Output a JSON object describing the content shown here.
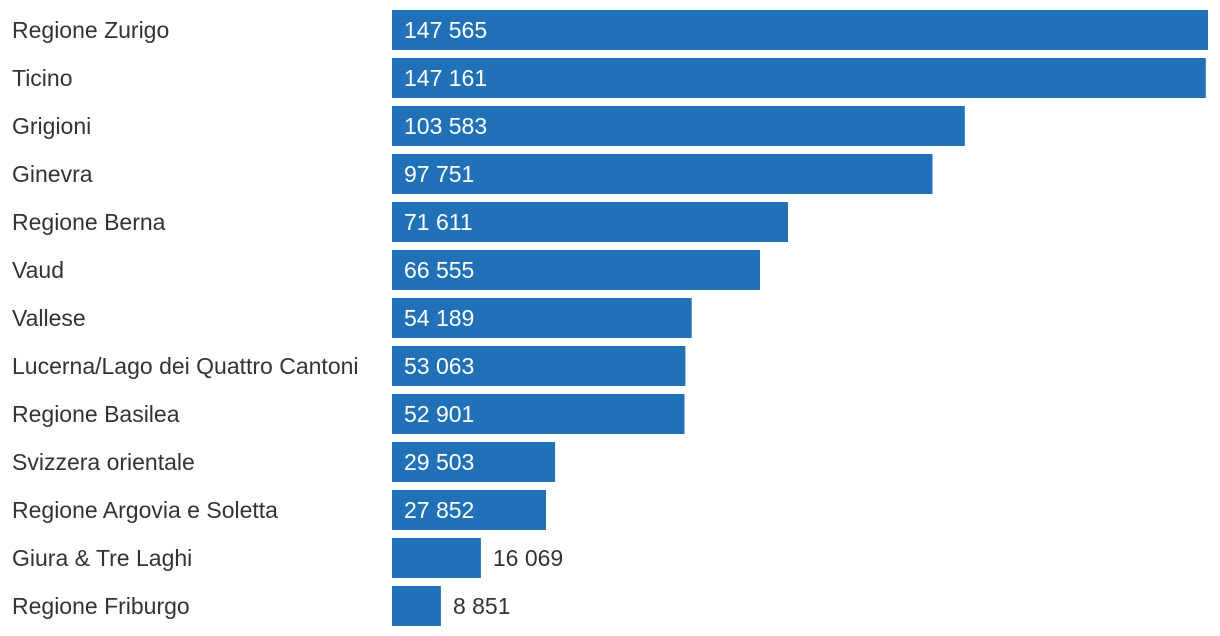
{
  "chart_data": {
    "type": "bar",
    "orientation": "horizontal",
    "title": "",
    "xlabel": "",
    "ylabel": "",
    "bar_color": "#2171b9",
    "grid": false,
    "legend": "none",
    "categories": [
      "Regione Zurigo",
      "Ticino",
      "Grigioni",
      "Ginevra",
      "Regione Berna",
      "Vaud",
      "Vallese",
      "Lucerna/Lago dei Quattro Cantoni",
      "Regione Basilea",
      "Svizzera orientale",
      "Regione Argovia e Soletta",
      "Giura & Tre Laghi",
      "Regione Friburgo"
    ],
    "values": [
      147565,
      147161,
      103583,
      97751,
      71611,
      66555,
      54189,
      53063,
      52901,
      29503,
      27852,
      16069,
      8851
    ],
    "value_labels": [
      "147 565",
      "147 161",
      "103 583",
      "97 751",
      "71 611",
      "66 555",
      "54 189",
      "53 063",
      "52 901",
      "29 503",
      "27 852",
      "16 069",
      "8 851"
    ],
    "xlim": [
      0,
      147565
    ]
  }
}
